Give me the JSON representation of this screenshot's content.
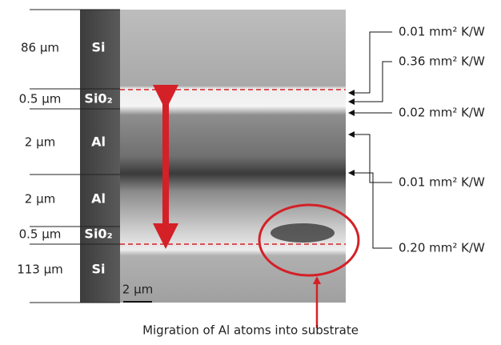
{
  "layers": [
    {
      "thickness": "86 µm",
      "material": "Si"
    },
    {
      "thickness": "0.5 µm",
      "material": "Si0₂"
    },
    {
      "thickness": "2 µm",
      "material": "Al"
    },
    {
      "thickness": "2 µm",
      "material": "Al"
    },
    {
      "thickness": "0.5 µm",
      "material": "Si0₂"
    },
    {
      "thickness": "113 µm",
      "material": "Si"
    }
  ],
  "resistances": [
    "0.01 mm² K/W",
    "0.36 mm² K/W",
    "0.02 mm² K/W",
    "0.01 mm² K/W",
    "0.20 mm² K/W"
  ],
  "scale_bar": "2 µm",
  "caption": "Migration of Al atoms into substrate"
}
